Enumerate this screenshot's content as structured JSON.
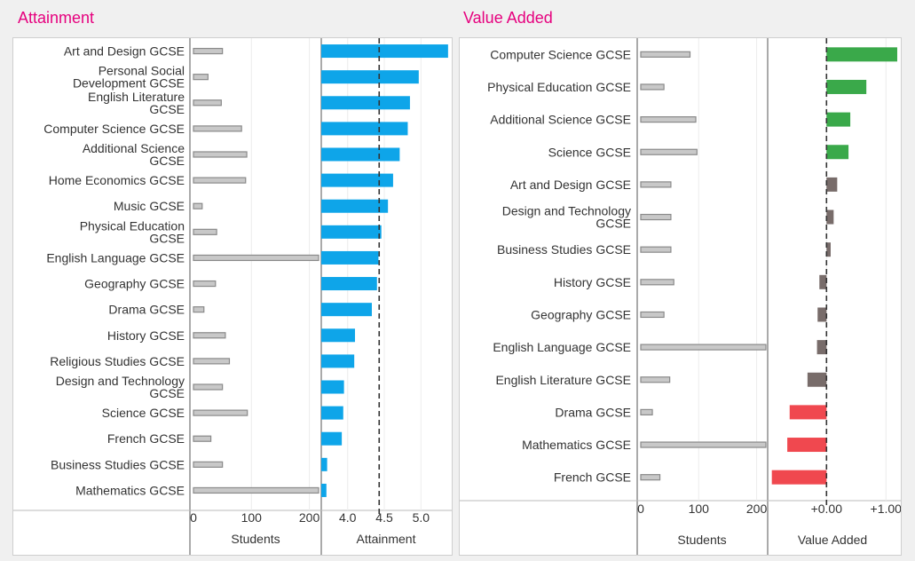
{
  "colors": {
    "title": "#e6007e",
    "attainment_bar": "#0ea5e9",
    "va_positive": "#3aa94a",
    "va_neutral": "#786c6a",
    "va_negative": "#f0484f",
    "student_bar_fill": "#c8c8c8",
    "student_bar_stroke": "#8a8a8a"
  },
  "panels": [
    {
      "id": "attainment",
      "title": "Attainment"
    },
    {
      "id": "value-added",
      "title": "Value Added"
    }
  ],
  "chart_data": [
    {
      "type": "bar",
      "title": "Attainment",
      "categories": [
        "Art and Design GCSE",
        "Personal Social Development GCSE",
        "English Literature GCSE",
        "Computer Science GCSE",
        "Additional Science GCSE",
        "Home Economics GCSE",
        "Music GCSE",
        "Physical Education GCSE",
        "English Language GCSE",
        "Geography GCSE",
        "Drama GCSE",
        "History GCSE",
        "Religious Studies GCSE",
        "Design and Technology GCSE",
        "Science GCSE",
        "French GCSE",
        "Business Studies GCSE",
        "Mathematics GCSE"
      ],
      "series": [
        {
          "name": "Students",
          "values": [
            50,
            25,
            48,
            83,
            92,
            90,
            15,
            40,
            216,
            38,
            18,
            55,
            62,
            50,
            93,
            30,
            50,
            216
          ]
        },
        {
          "name": "Attainment",
          "values": [
            5.37,
            4.97,
            4.85,
            4.82,
            4.71,
            4.62,
            4.55,
            4.46,
            4.42,
            4.4,
            4.33,
            4.1,
            4.09,
            3.95,
            3.94,
            3.92,
            3.72,
            3.71
          ]
        }
      ],
      "xlabel_students": "Students",
      "xlabel_metric": "Attainment",
      "students_ticks": [
        "0",
        "100",
        "200"
      ],
      "students_xlim": [
        0,
        220
      ],
      "metric_ticks": [
        "4.0",
        "4.5",
        "5.0"
      ],
      "metric_tick_values": [
        4.0,
        4.5,
        5.0
      ],
      "metric_xlim": [
        3.64,
        5.42
      ],
      "reference_line": 4.43
    },
    {
      "type": "bar",
      "title": "Value Added",
      "categories": [
        "Computer Science GCSE",
        "Physical Education GCSE",
        "Additional Science GCSE",
        "Science GCSE",
        "Art and Design GCSE",
        "Design and Technology GCSE",
        "Business Studies GCSE",
        "History GCSE",
        "Geography GCSE",
        "English Language GCSE",
        "English Literature GCSE",
        "Drama GCSE",
        "Mathematics GCSE",
        "French GCSE"
      ],
      "series": [
        {
          "name": "Students",
          "values": [
            85,
            40,
            95,
            97,
            52,
            52,
            52,
            57,
            40,
            216,
            50,
            20,
            216,
            33
          ]
        },
        {
          "name": "Value Added",
          "values": [
            1.19,
            0.67,
            0.4,
            0.37,
            0.18,
            0.12,
            0.07,
            -0.12,
            -0.15,
            -0.16,
            -0.32,
            -0.62,
            -0.66,
            -0.92
          ]
        }
      ],
      "xlabel_students": "Students",
      "xlabel_metric": "Value Added",
      "students_ticks": [
        "0",
        "100",
        "200"
      ],
      "students_xlim": [
        0,
        220
      ],
      "metric_ticks": [
        "+0.00",
        "+1.00"
      ],
      "metric_tick_values": [
        0,
        1.0
      ],
      "metric_xlim": [
        -0.96,
        1.22
      ],
      "reference_line": 0
    }
  ]
}
